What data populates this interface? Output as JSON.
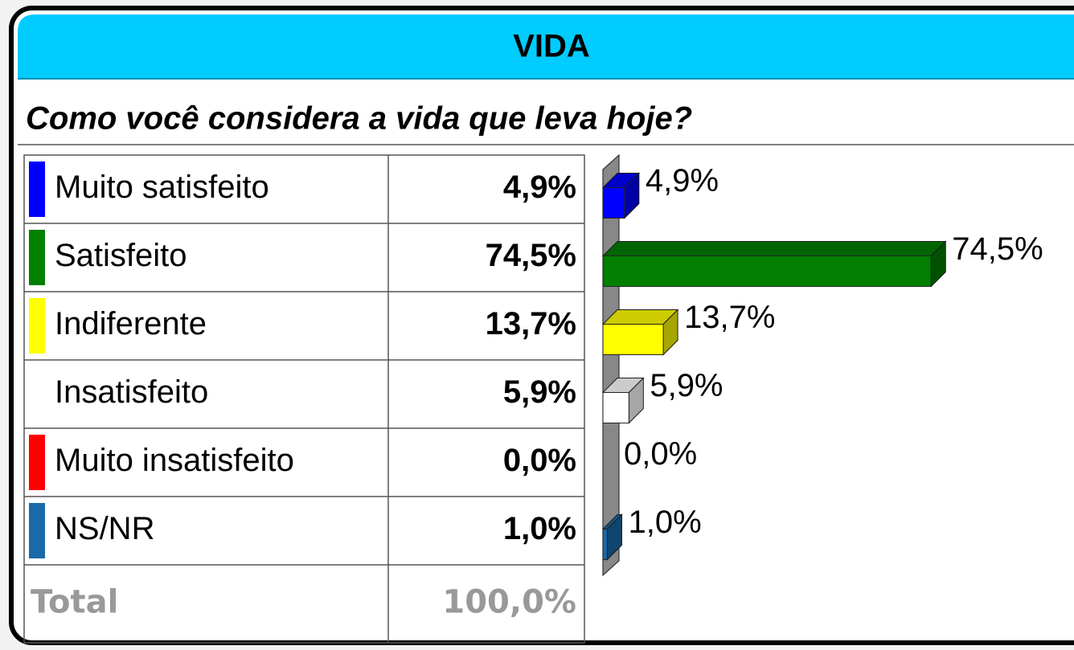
{
  "chart_data": {
    "type": "bar",
    "orientation": "horizontal",
    "title": "VIDA",
    "subtitle": "Como você considera a vida que leva hoje?",
    "categories": [
      "Muito satisfeito",
      "Satisfeito",
      "Indiferente",
      "Insatisfeito",
      "Muito insatisfeito",
      "NS/NR"
    ],
    "values": [
      4.9,
      74.5,
      13.7,
      5.9,
      0.0,
      1.0
    ],
    "value_labels": [
      "4,9%",
      "74,5%",
      "13,7%",
      "5,9%",
      "0,0%",
      "1,0%"
    ],
    "colors": [
      "#0000ff",
      "#007f00",
      "#ffff00",
      "#ffffff",
      "#ff0000",
      "#1a6aa8"
    ],
    "total": {
      "name": "Total",
      "value": "100,0%"
    }
  }
}
